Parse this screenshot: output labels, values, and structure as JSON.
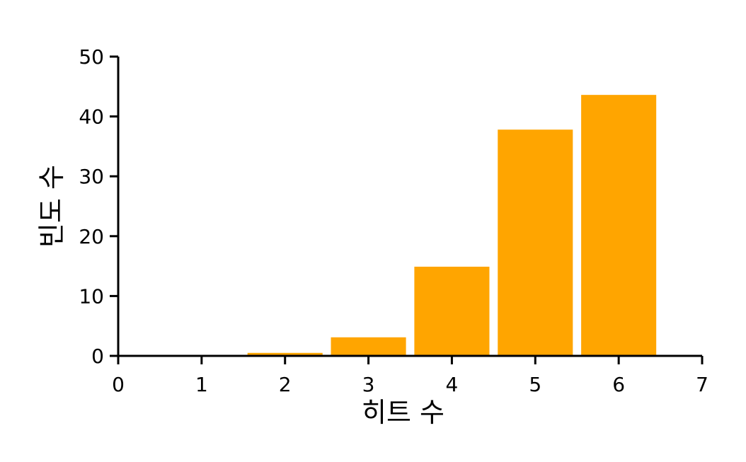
{
  "chart_data": {
    "type": "bar",
    "categories": [
      "1",
      "2",
      "3",
      "4",
      "5",
      "6"
    ],
    "x": [
      1,
      2,
      3,
      4,
      5,
      6
    ],
    "values": [
      0,
      0.5,
      3.1,
      14.9,
      37.8,
      43.6
    ],
    "title": "",
    "xlabel": "히트 수",
    "ylabel": "빈도 수",
    "xlim": [
      0,
      7
    ],
    "ylim": [
      0,
      50
    ],
    "xticks": [
      "0",
      "1",
      "2",
      "3",
      "4",
      "5",
      "6",
      "7"
    ],
    "yticks": [
      "0",
      "10",
      "20",
      "30",
      "40",
      "50"
    ],
    "grid": false,
    "bar_color": "#FFA500"
  }
}
